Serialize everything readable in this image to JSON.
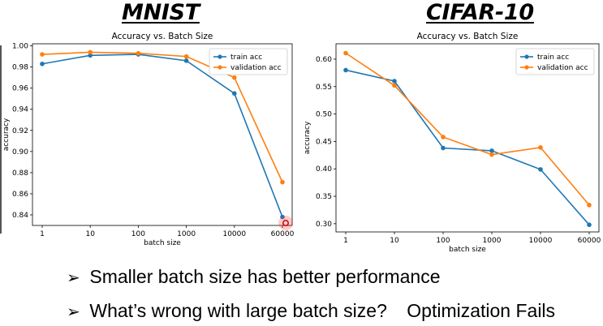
{
  "headings": {
    "left": "MNIST",
    "right": "CIFAR-10"
  },
  "colors": {
    "train": "#1f77b4",
    "validation": "#ff7f0e",
    "highlight": "#ff3030"
  },
  "chart_data": [
    {
      "type": "line",
      "title": "Accuracy vs. Batch Size",
      "xlabel": "batch size",
      "ylabel": "accuracy",
      "categories": [
        "1",
        "10",
        "100",
        "1000",
        "10000",
        "60000"
      ],
      "yticks": [
        "0.84",
        "0.86",
        "0.88",
        "0.90",
        "0.92",
        "0.94",
        "0.96",
        "0.98",
        "1.00"
      ],
      "ylim": [
        0.83,
        1.002
      ],
      "grid": false,
      "legend_position": "top-right",
      "series": [
        {
          "name": "train acc",
          "values": [
            0.983,
            0.991,
            0.992,
            0.986,
            0.955,
            0.838
          ]
        },
        {
          "name": "validation acc",
          "values": [
            0.992,
            0.994,
            0.993,
            0.99,
            0.97,
            0.871
          ]
        }
      ]
    },
    {
      "type": "line",
      "title": "Accuracy vs. Batch Size",
      "xlabel": "batch size",
      "ylabel": "accuracy",
      "categories": [
        "1",
        "10",
        "100",
        "1000",
        "10000",
        "60000"
      ],
      "yticks": [
        "0.30",
        "0.35",
        "0.40",
        "0.45",
        "0.50",
        "0.55",
        "0.60"
      ],
      "ylim": [
        0.285,
        0.628
      ],
      "grid": false,
      "legend_position": "top-right",
      "series": [
        {
          "name": "train acc",
          "values": [
            0.58,
            0.56,
            0.438,
            0.433,
            0.399,
            0.298
          ]
        },
        {
          "name": "validation acc",
          "values": [
            0.611,
            0.552,
            0.458,
            0.426,
            0.439,
            0.334
          ]
        }
      ]
    }
  ],
  "bullets": {
    "marker": "➢",
    "line1": "Smaller batch size has better performance",
    "line2": "What’s wrong with large batch size?",
    "line2_extra": "Optimization Fails"
  }
}
